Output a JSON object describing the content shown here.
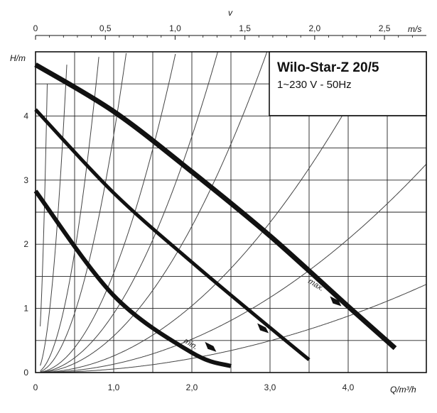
{
  "chart_data": {
    "type": "line",
    "title": "Wilo-Star-Z 20/5",
    "subtitle": "1~230 V - 50Hz",
    "xlabel": "Q/m³/h",
    "ylabel": "H/m",
    "top_axis_label": "v",
    "top_axis_unit": "m/s",
    "xlim": [
      0,
      5.0
    ],
    "ylim": [
      0,
      5.0
    ],
    "top_xlim": [
      0,
      2.8
    ],
    "x_ticks": [
      0,
      1.0,
      2.0,
      3.0,
      4.0
    ],
    "x_tick_labels": [
      "0",
      "1,0",
      "2,0",
      "3,0",
      "4,0"
    ],
    "y_ticks": [
      0,
      1,
      2,
      3,
      4
    ],
    "y_tick_labels": [
      "0",
      "1",
      "2",
      "3",
      "4"
    ],
    "top_ticks": [
      0,
      0.5,
      1.0,
      1.5,
      2.0,
      2.5
    ],
    "top_tick_labels": [
      "0",
      "0,5",
      "1,0",
      "1,5",
      "2,0",
      "2,5"
    ],
    "grid": true,
    "series": [
      {
        "name": "max.",
        "x": [
          0,
          1.0,
          2.0,
          3.0,
          4.0,
          4.6
        ],
        "y": [
          4.8,
          4.07,
          3.13,
          2.13,
          1.03,
          0.38
        ]
      },
      {
        "name": "",
        "x": [
          0,
          1.0,
          2.0,
          3.0,
          3.5
        ],
        "y": [
          4.1,
          2.8,
          1.72,
          0.7,
          0.2
        ]
      },
      {
        "name": "min.",
        "x": [
          0,
          1.0,
          2.0,
          2.5
        ],
        "y": [
          2.83,
          1.2,
          0.31,
          0.1
        ]
      }
    ],
    "system_curves_k": [
      200,
      30,
      7.5,
      3.7,
      1.55,
      0.92,
      0.57,
      0.26,
      0.13,
      0.055
    ],
    "annotations": [
      "max.",
      "min."
    ],
    "colors": {
      "curves": "#111111",
      "grid": "#222222",
      "system_curves": "#444444"
    }
  }
}
